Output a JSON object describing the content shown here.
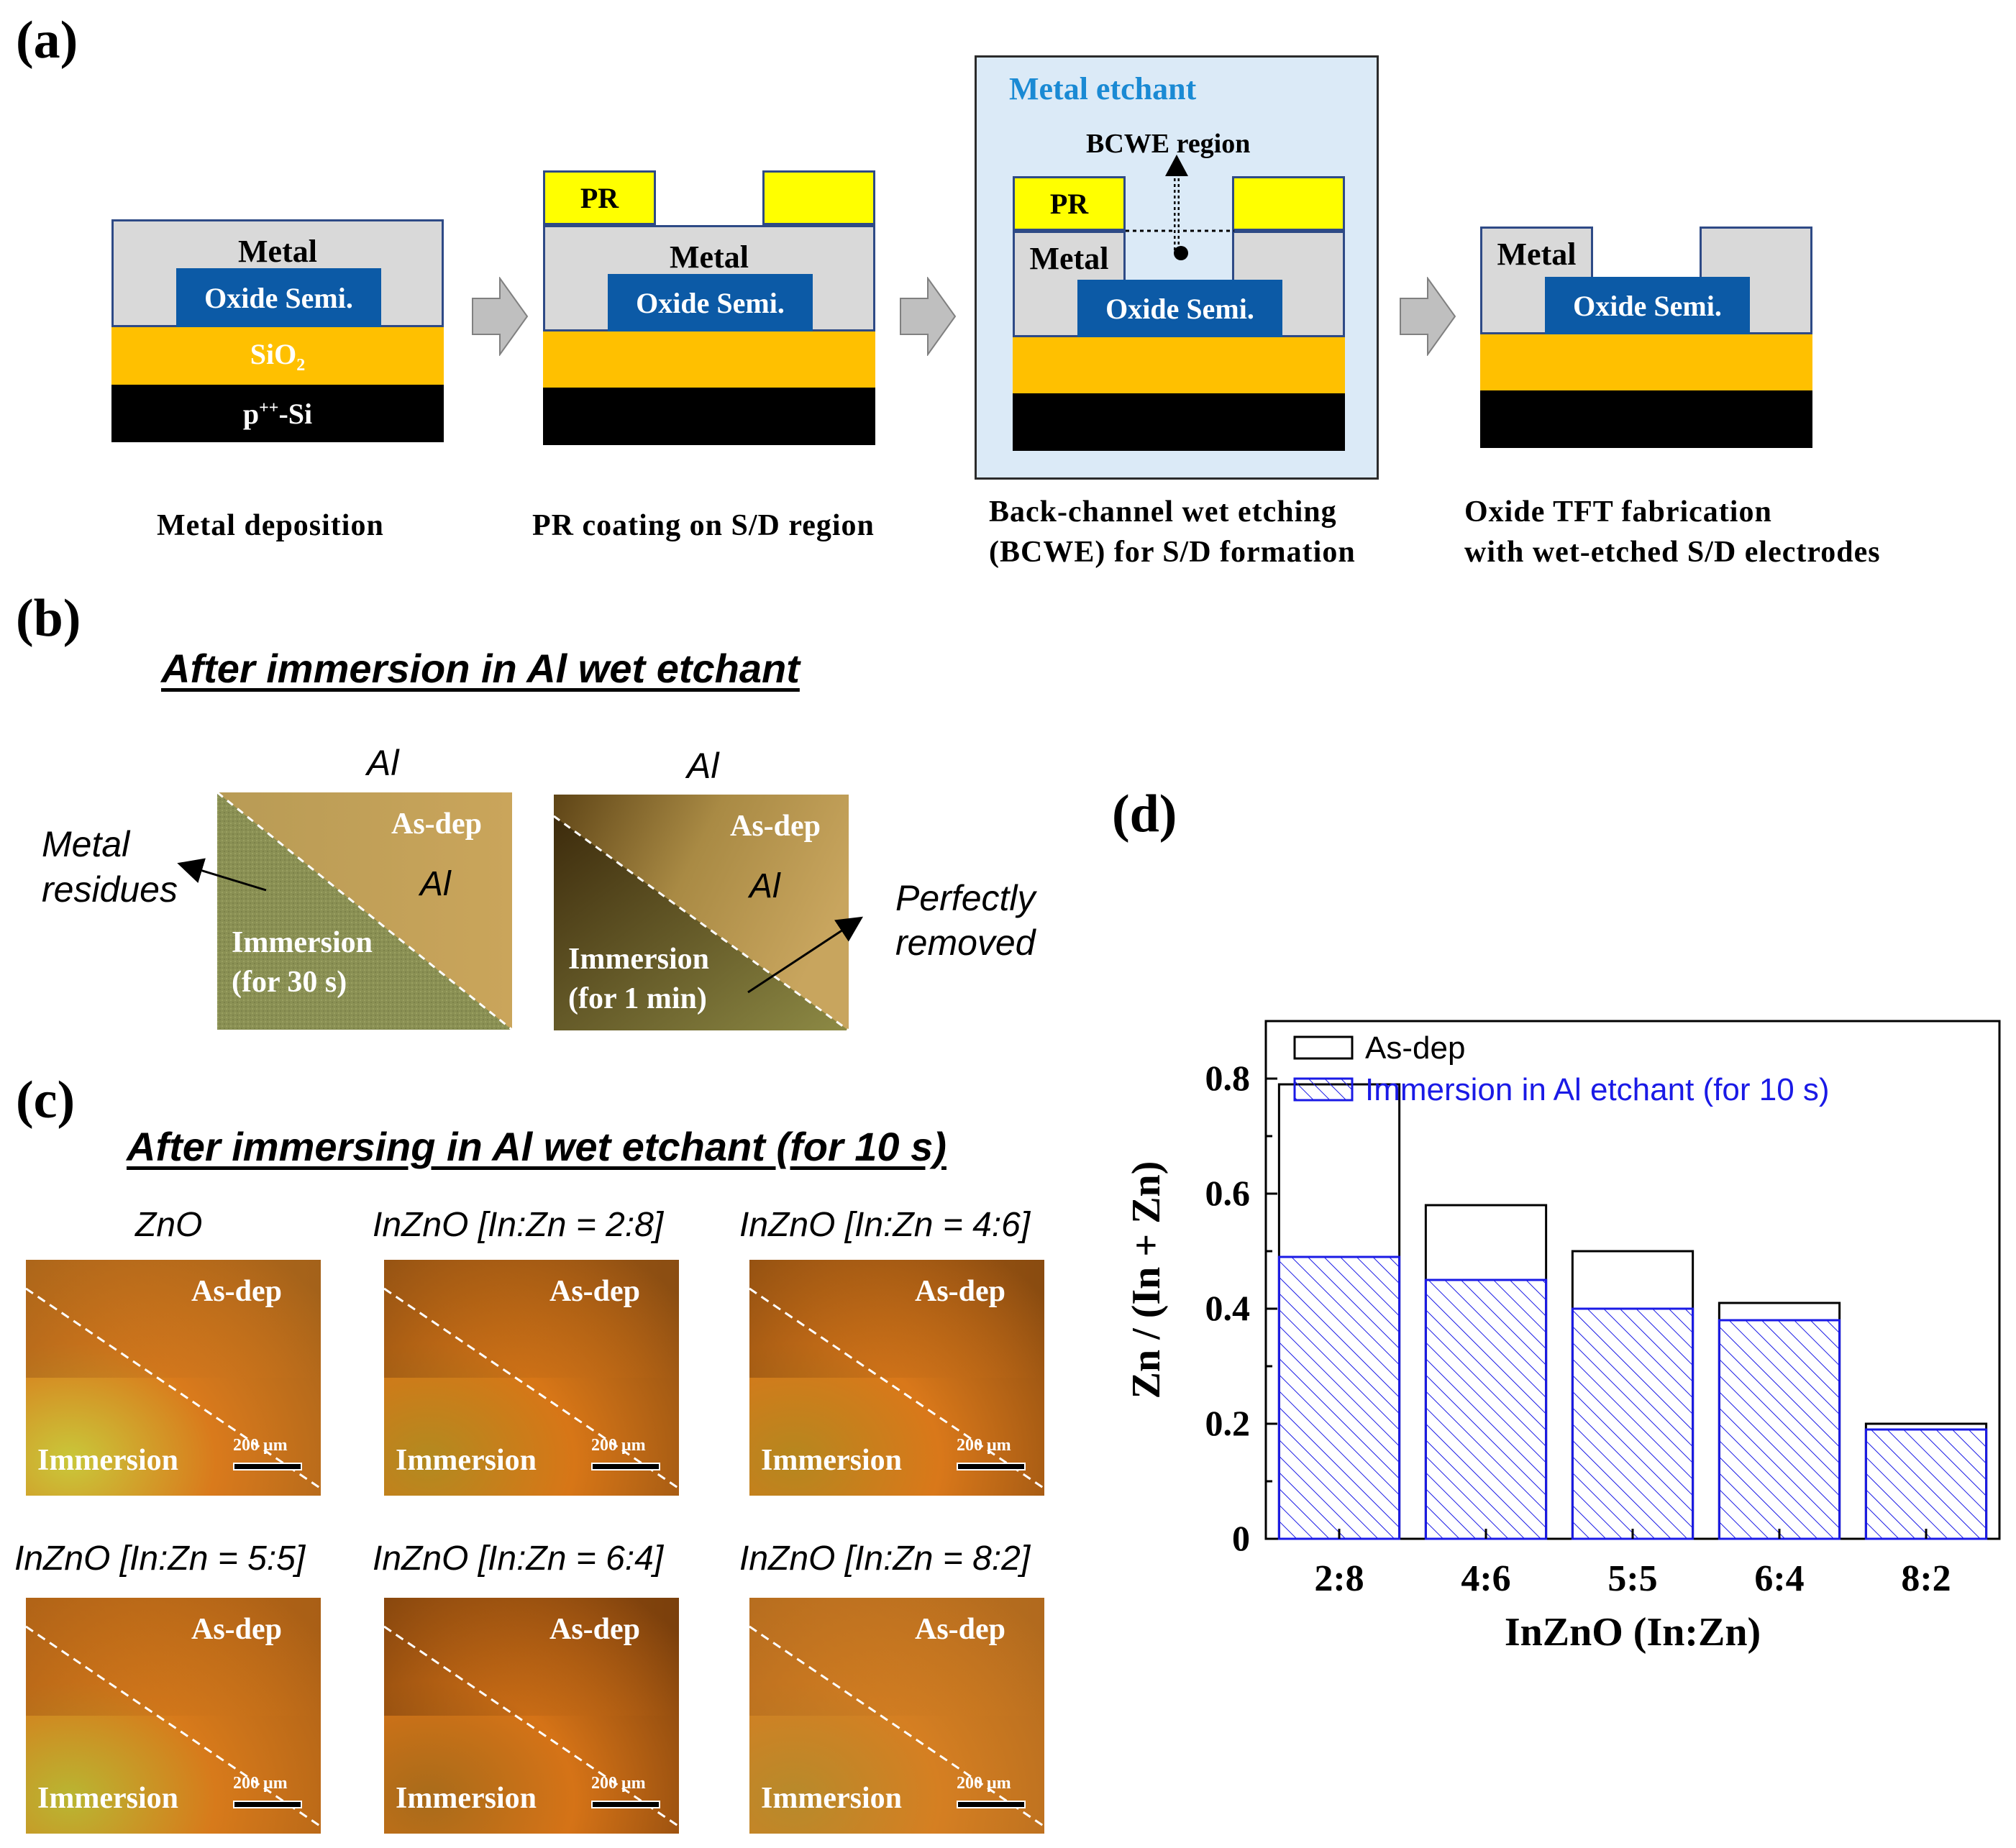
{
  "panels": {
    "a": "(a)",
    "b": "(b)",
    "c": "(c)",
    "d": "(d)"
  },
  "panel_a": {
    "step1": {
      "metal": "Metal",
      "oxide": "Oxide Semi.",
      "sio2": "SiO",
      "sio2_sub": "2",
      "si_prefix": "p",
      "si_sup": "++",
      "si_suffix": "-Si",
      "caption": "Metal deposition"
    },
    "step2": {
      "pr": "PR",
      "metal": "Metal",
      "oxide": "Oxide Semi.",
      "caption": "PR coating on S/D region"
    },
    "step3": {
      "etchant": "Metal etchant",
      "region": "BCWE region",
      "pr": "PR",
      "metal": "Metal",
      "oxide": "Oxide Semi.",
      "caption_line1": "Back-channel  wet etching",
      "caption_line2": "(BCWE) for S/D formation"
    },
    "step4": {
      "metal": "Metal",
      "oxide": "Oxide Semi.",
      "caption_line1": "Oxide TFT fabrication",
      "caption_line2": "with wet-etched S/D electrodes"
    },
    "colors": {
      "metal": "#d9d9d9",
      "oxide": "#0c5aa6",
      "sio2": "#ffc000",
      "si": "#000000",
      "pr": "#ffff00",
      "etchant_bg": "#dbeaf7",
      "etchant_text": "#1a8ad4"
    }
  },
  "panel_b": {
    "heading": "After immersion in Al wet etchant",
    "img1": {
      "title": "Al",
      "asdep": "As-dep",
      "al": "Al",
      "immersion": "Immersion",
      "time": "(for 30 s)"
    },
    "img2": {
      "title": "Al",
      "asdep": "As-dep",
      "al": "Al",
      "immersion": "Immersion",
      "time": "(for 1 min)"
    },
    "annot_left_1": "Metal",
    "annot_left_2": "residues",
    "annot_right_1": "Perfectly",
    "annot_right_2": "removed"
  },
  "panel_c": {
    "heading": "After immersing in Al wet etchant (for 10 s)",
    "samples": [
      {
        "title": "ZnO",
        "asdep": "As-dep",
        "immersion": "Immersion",
        "scale": "200 μm"
      },
      {
        "title": "InZnO [In:Zn = 2:8]",
        "asdep": "As-dep",
        "immersion": "Immersion",
        "scale": "200 μm"
      },
      {
        "title": "InZnO [In:Zn = 4:6]",
        "asdep": "As-dep",
        "immersion": "Immersion",
        "scale": "200 μm"
      },
      {
        "title": "InZnO [In:Zn = 5:5]",
        "asdep": "As-dep",
        "immersion": "Immersion",
        "scale": "200 μm"
      },
      {
        "title": "InZnO [In:Zn = 6:4]",
        "asdep": "As-dep",
        "immersion": "Immersion",
        "scale": "200 μm"
      },
      {
        "title": "InZnO [In:Zn = 8:2]",
        "asdep": "As-dep",
        "immersion": "Immersion",
        "scale": "200 μm"
      }
    ]
  },
  "chart_data": {
    "type": "bar",
    "title": "",
    "categories": [
      "2:8",
      "4:6",
      "5:5",
      "6:4",
      "8:2"
    ],
    "series": [
      {
        "name": "As-dep",
        "values": [
          0.79,
          0.58,
          0.5,
          0.41,
          0.2
        ],
        "color": "#000000"
      },
      {
        "name": "Immersion in Al etchant (for 10 s)",
        "values": [
          0.49,
          0.45,
          0.4,
          0.38,
          0.19
        ],
        "color": "#1a1ae6"
      }
    ],
    "xlabel": "InZnO (In:Zn)",
    "ylabel": "Zn / (In + Zn)",
    "ylim": [
      0,
      0.9
    ],
    "yticks": [
      "0",
      "0.2",
      "0.4",
      "0.6",
      "0.8"
    ],
    "ytick_values": [
      0,
      0.2,
      0.4,
      0.6,
      0.8
    ],
    "legend": "top-left",
    "grid": false
  }
}
